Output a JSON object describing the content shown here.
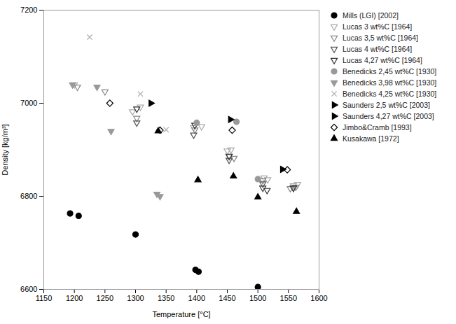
{
  "chart_data": {
    "type": "scatter",
    "xlabel": "Temperature [°C]",
    "ylabel": "Density [kg/m³]",
    "xlim": [
      1150,
      1600
    ],
    "ylim": [
      6600,
      7200
    ],
    "xticks": [
      1150,
      1200,
      1250,
      1300,
      1350,
      1400,
      1450,
      1500,
      1550,
      1600
    ],
    "yticks": [
      6600,
      6800,
      7000,
      7200
    ],
    "legend": "upper right",
    "series": [
      {
        "name": "Mills (LGI) [2002]",
        "color": "#000000",
        "marker": "circle",
        "x": [
          1193,
          1207,
          1300,
          1398,
          1403,
          1500
        ],
        "values": [
          6763,
          6758,
          6718,
          6642,
          6638,
          6605
        ]
      },
      {
        "name": "Lucas 3 wt%C [1964]",
        "color": "#aaaaaa",
        "marker": "triangle-down-open",
        "x": [
          1200,
          1295,
          1308,
          1395,
          1408,
          1450,
          1456,
          1510,
          1516,
          1558,
          1565
        ],
        "values": [
          7040,
          6982,
          6992,
          6948,
          6950,
          6898,
          6900,
          6840,
          6836,
          6823,
          6826
        ]
      },
      {
        "name": "Lucas 3,5 wt%C [1964]",
        "color": "#888888",
        "marker": "triangle-down-open",
        "x": [
          1205,
          1250,
          1302,
          1397,
          1453,
          1461,
          1508,
          1553,
          1562
        ],
        "values": [
          7035,
          7025,
          6968,
          6943,
          6887,
          6882,
          6834,
          6817,
          6820
        ]
      },
      {
        "name": "Lucas 4 wt%C [1964]",
        "color": "#555555",
        "marker": "triangle-down-open",
        "x": [
          1302,
          1395,
          1453,
          1508,
          1558
        ],
        "values": [
          6958,
          6932,
          6878,
          6827,
          6818
        ]
      },
      {
        "name": "Lucas 4,27 wt%C [1964]",
        "color": "#333333",
        "marker": "triangle-down-open",
        "x": [
          1302,
          1397,
          1453,
          1508,
          1515,
          1558
        ],
        "values": [
          6988,
          6953,
          6886,
          6818,
          6813,
          6818
        ]
      },
      {
        "name": "Benedicks 2,45 wt%C [1930]",
        "color": "#999999",
        "marker": "circle",
        "x": [
          1400,
          1465,
          1500
        ],
        "values": [
          6958,
          6960,
          6837
        ]
      },
      {
        "name": "Benedicks 3,98 wt%C [1930]",
        "color": "#999999",
        "marker": "triangle-down",
        "x": [
          1197,
          1237,
          1260,
          1335,
          1340
        ],
        "values": [
          7040,
          7035,
          6940,
          6805,
          6800
        ]
      },
      {
        "name": "Benedicks 4,25 wt%C [1930]",
        "color": "#aaaaaa",
        "marker": "cross",
        "x": [
          1225,
          1308,
          1350
        ],
        "values": [
          7142,
          7020,
          6943
        ]
      },
      {
        "name": "Saunders 2,5 wt%C [2003]",
        "color": "#000000",
        "marker": "triangle-right",
        "x": [
          1325,
          1455
        ],
        "values": [
          7000,
          6965
        ]
      },
      {
        "name": "Saunders 4,27 wt%C [2003]",
        "color": "#000000",
        "marker": "triangle-right",
        "x": [
          1540
        ],
        "values": [
          6858
        ]
      },
      {
        "name": "Jimbo&Cramb [1993]",
        "color": "#000000",
        "marker": "diamond-open",
        "x": [
          1258,
          1340,
          1458,
          1548
        ],
        "values": [
          7000,
          6942,
          6942,
          6857
        ]
      },
      {
        "name": "Kusakawa [1972]",
        "color": "#000000",
        "marker": "triangle",
        "x": [
          1337,
          1402,
          1460,
          1500,
          1563
        ],
        "values": [
          6940,
          6835,
          6843,
          6798,
          6767
        ]
      }
    ]
  }
}
